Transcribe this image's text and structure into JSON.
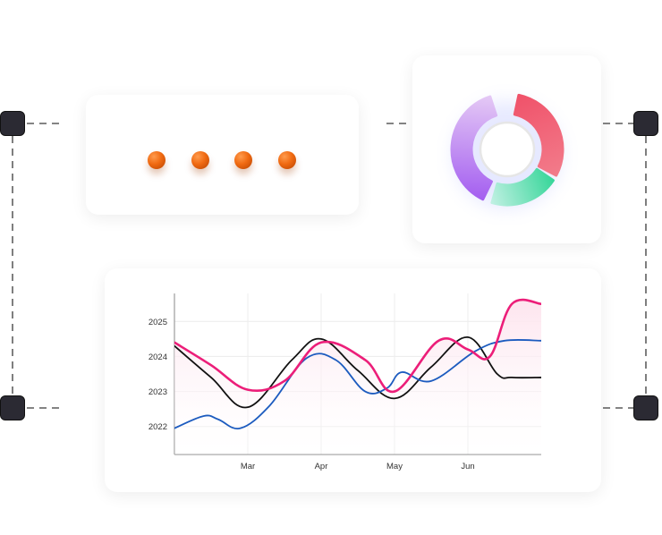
{
  "chart_data": {
    "type": "line",
    "categories": [
      "Mar",
      "Apr",
      "May",
      "Jun"
    ],
    "y_tick_labels": [
      "2022",
      "2023",
      "2024",
      "2025"
    ],
    "ylim": [
      2021.2,
      2025.8
    ],
    "grid": true,
    "series": [
      {
        "color": "#ec1e79",
        "fill": "#fde4ee",
        "x": [
          0,
          0.5,
          1.0,
          1.5,
          2.0,
          2.6,
          3.0,
          3.6,
          4.0,
          4.3,
          4.6,
          5.0
        ],
        "y": [
          2024.4,
          2023.75,
          2023.05,
          2023.3,
          2024.4,
          2023.9,
          2023.0,
          2024.45,
          2024.2,
          2024.0,
          2025.5,
          2025.5
        ]
      },
      {
        "color": "#111111",
        "x": [
          0,
          0.5,
          1.0,
          1.6,
          2.0,
          2.5,
          3.0,
          3.5,
          4.0,
          4.4,
          4.6,
          5.0
        ],
        "y": [
          2024.3,
          2023.4,
          2022.55,
          2023.9,
          2024.5,
          2023.6,
          2022.8,
          2023.7,
          2024.55,
          2023.5,
          2023.4,
          2023.4
        ]
      },
      {
        "color": "#1c5bbf",
        "x": [
          0,
          0.4,
          0.6,
          0.9,
          1.3,
          1.8,
          2.2,
          2.6,
          2.9,
          3.1,
          3.5,
          4.1,
          4.5,
          5.0
        ],
        "y": [
          2021.95,
          2022.3,
          2022.2,
          2021.95,
          2022.6,
          2023.95,
          2023.9,
          2023.0,
          2023.1,
          2023.55,
          2023.3,
          2024.15,
          2024.45,
          2024.45
        ]
      }
    ]
  },
  "donut": {
    "segments": [
      {
        "name": "coral",
        "start": 12,
        "end": 118,
        "from": "#f0526a",
        "to": "#f27b8a"
      },
      {
        "name": "green",
        "start": 124,
        "end": 196,
        "from": "#38d69a",
        "to": "#bff0e2"
      },
      {
        "name": "purple",
        "start": 206,
        "end": 342,
        "from": "#a45ff0",
        "to": "#e4c8f5"
      }
    ]
  }
}
